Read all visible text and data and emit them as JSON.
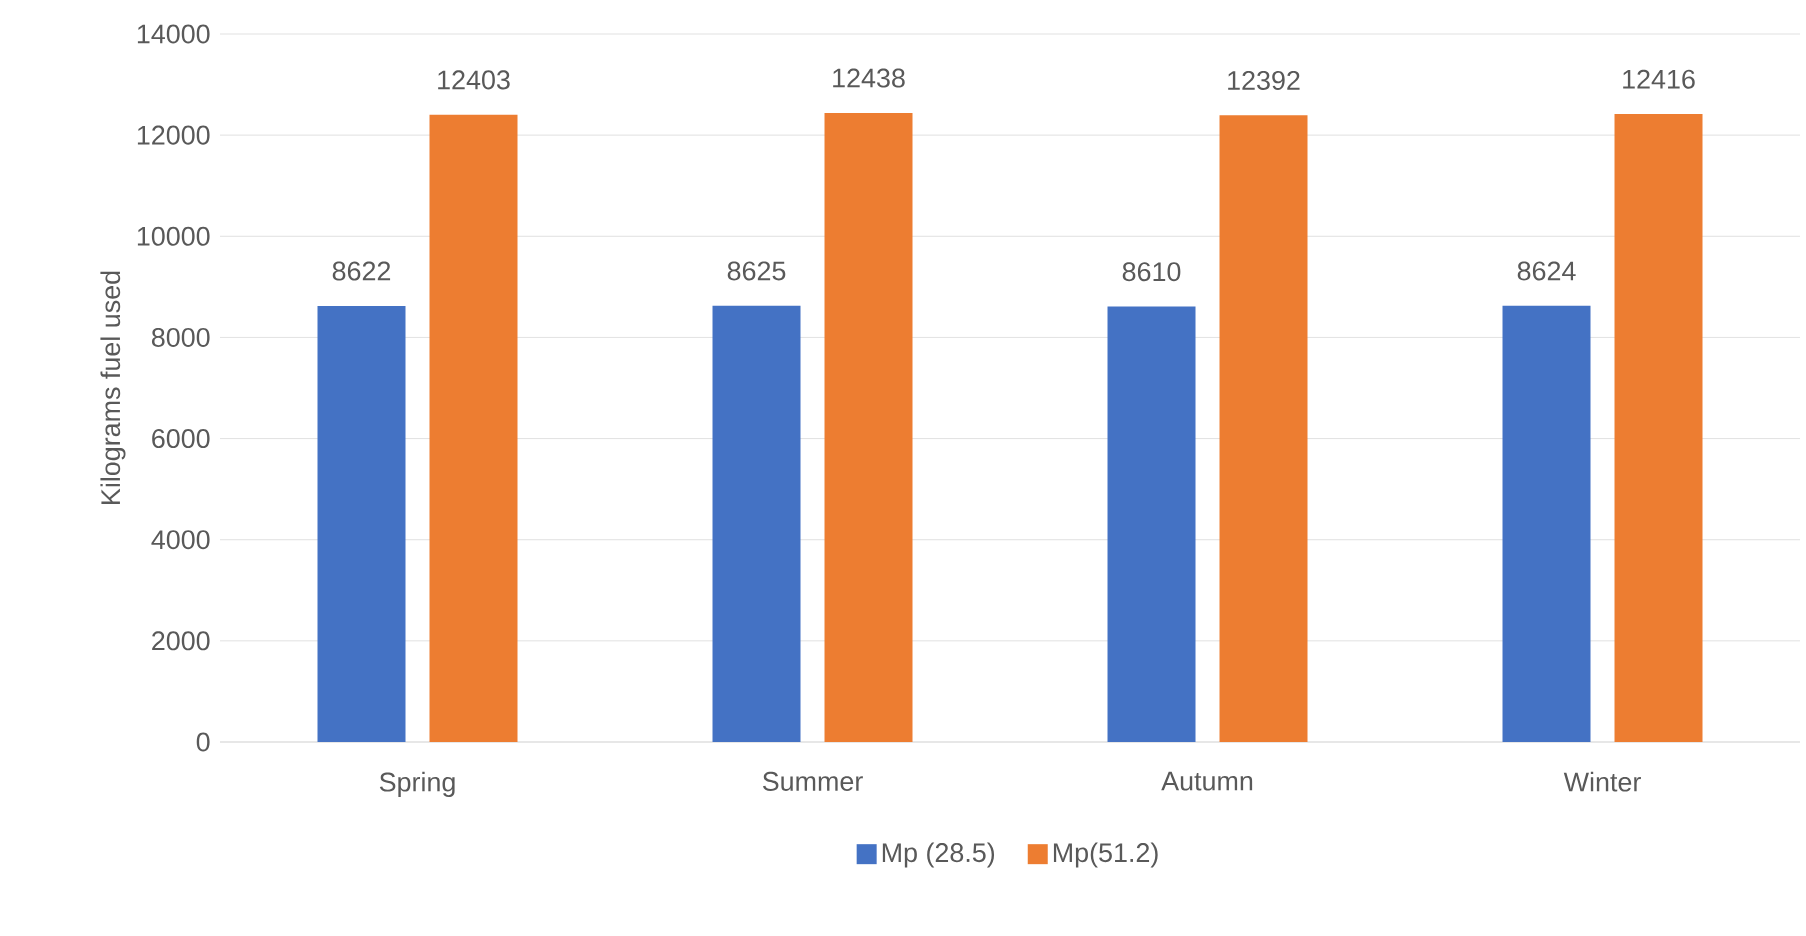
{
  "chart_data": {
    "type": "bar",
    "ylabel": "Kilograms fuel used",
    "categories": [
      "Spring",
      "Summer",
      "Autumn",
      "Winter"
    ],
    "series": [
      {
        "name": "Mp (28.5)",
        "color": "#4472c4",
        "values": [
          8622,
          8625,
          8610,
          8624
        ]
      },
      {
        "name": "Mp(51.2)",
        "color": "#ed7d31",
        "values": [
          12403,
          12438,
          12392,
          12416
        ]
      }
    ],
    "ylim": [
      0,
      14000
    ],
    "yticks": [
      0,
      2000,
      4000,
      6000,
      8000,
      10000,
      12000,
      14000
    ],
    "grid": "y",
    "legend": "bottom",
    "data_labels": true
  }
}
